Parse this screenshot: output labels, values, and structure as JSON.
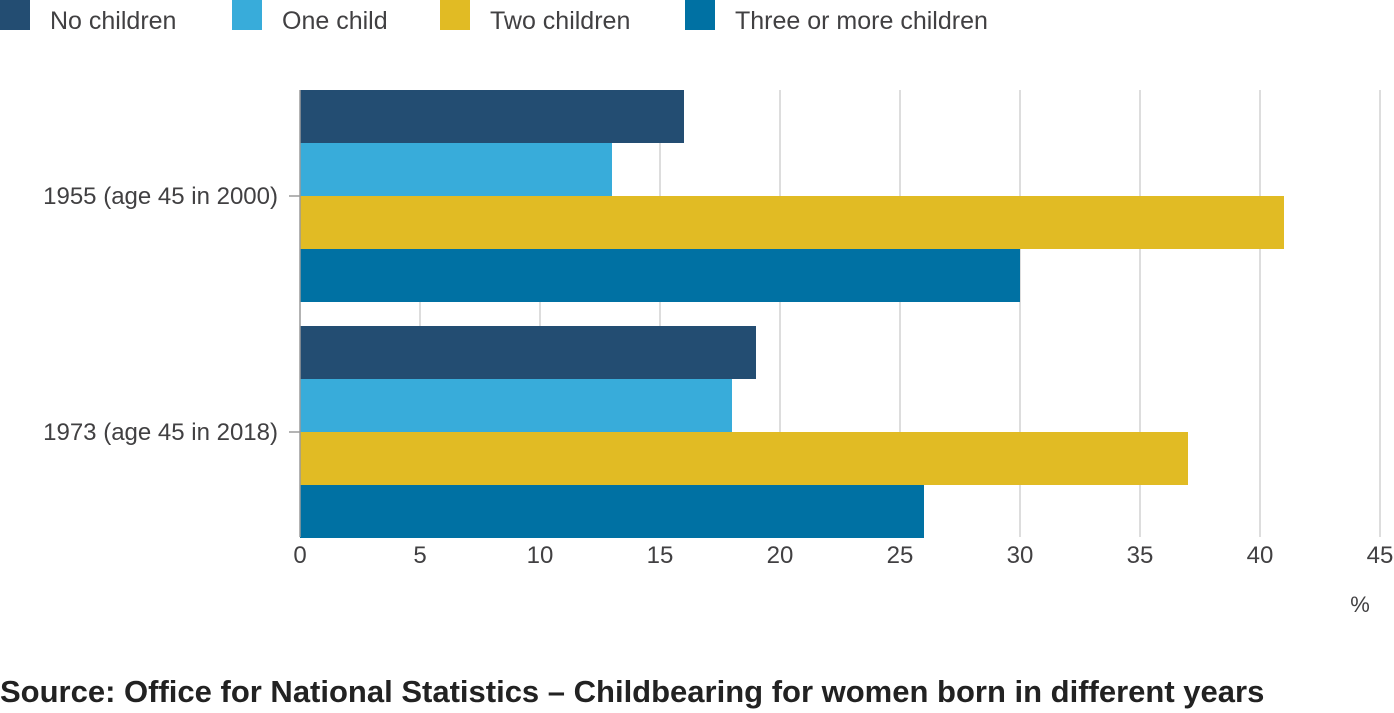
{
  "source_note": "Source: Office for National Statistics – Childbearing for women born in different years",
  "chart_data": {
    "type": "bar",
    "orientation": "horizontal",
    "categories": [
      "1955 (age 45 in 2000)",
      "1973 (age 45 in 2018)"
    ],
    "series": [
      {
        "name": "No children",
        "color": "#234d72",
        "values": [
          16,
          19
        ]
      },
      {
        "name": "One child",
        "color": "#38acda",
        "values": [
          13,
          18
        ]
      },
      {
        "name": "Two children",
        "color": "#e1bb24",
        "values": [
          41,
          37
        ]
      },
      {
        "name": "Three or more children",
        "color": "#0071a3",
        "values": [
          30,
          26
        ]
      }
    ],
    "x_ticks": [
      0,
      5,
      10,
      15,
      20,
      25,
      30,
      35,
      40,
      45
    ],
    "xlim": [
      0,
      45
    ],
    "xlabel": "%",
    "grid": true,
    "legend_position": "top-left"
  }
}
